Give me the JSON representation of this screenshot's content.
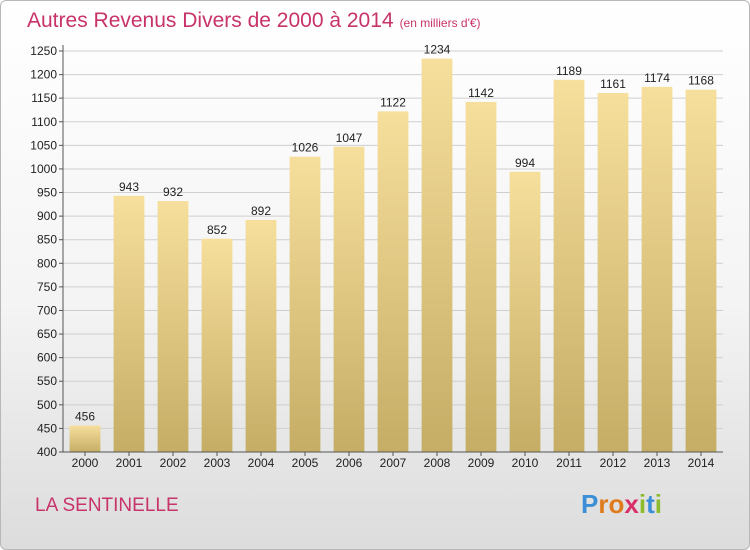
{
  "title": "Autres Revenus Divers de 2000 à 2014",
  "subtitle": "(en milliers d'€)",
  "commune": "LA SENTINELLE",
  "logo": {
    "text": "Proxiti",
    "letters": [
      "P",
      "r",
      "o",
      "x",
      "i",
      "t",
      "i"
    ],
    "colors": [
      "#3b8fd6",
      "#e07b1d",
      "#e07b1d",
      "#d82f6a",
      "#8cbc2c",
      "#3b8fd6",
      "#8cbc2c"
    ]
  },
  "colors": {
    "title": "#c8336a",
    "bar_light": "#f6df9c",
    "bar_dark": "#c6ad66",
    "grid": "#cfcfcf"
  },
  "chart_data": {
    "type": "bar",
    "title": "Autres Revenus Divers de 2000 à 2014",
    "subtitle": "(en milliers d'€)",
    "categories": [
      "2000",
      "2001",
      "2002",
      "2003",
      "2004",
      "2005",
      "2006",
      "2007",
      "2008",
      "2009",
      "2010",
      "2011",
      "2012",
      "2013",
      "2014"
    ],
    "values": [
      456,
      943,
      932,
      852,
      892,
      1026,
      1047,
      1122,
      1234,
      1142,
      994,
      1189,
      1161,
      1174,
      1168
    ],
    "ylim": [
      400,
      1250
    ],
    "yticks": [
      400,
      450,
      500,
      550,
      600,
      650,
      700,
      750,
      800,
      850,
      900,
      950,
      1000,
      1050,
      1100,
      1150,
      1200,
      1250
    ],
    "grid": true,
    "xlabel": "",
    "ylabel": ""
  }
}
